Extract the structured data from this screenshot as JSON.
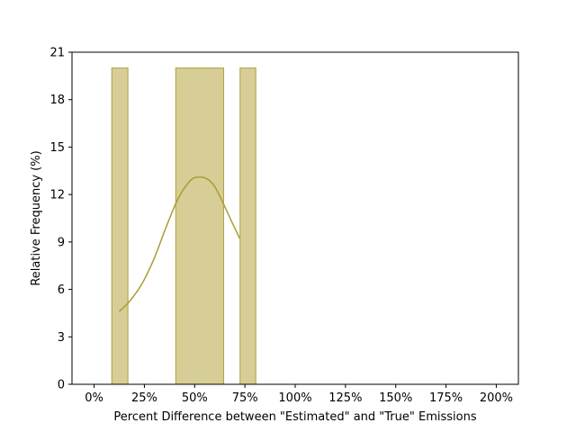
{
  "chart_data": {
    "type": "bar",
    "title": "",
    "xlabel": "Percent Difference between \"Estimated\" and \"True\" Emissions",
    "ylabel": "Relative Frequency (%)",
    "xlim": [
      -11,
      211
    ],
    "ylim": [
      0,
      21
    ],
    "x_ticks": [
      0,
      25,
      50,
      75,
      100,
      125,
      150,
      175,
      200
    ],
    "x_tick_labels": [
      "0%",
      "25%",
      "50%",
      "75%",
      "100%",
      "125%",
      "150%",
      "175%",
      "200%"
    ],
    "y_ticks": [
      0,
      3,
      6,
      9,
      12,
      15,
      18,
      21
    ],
    "y_tick_labels": [
      "0",
      "3",
      "6",
      "9",
      "12",
      "15",
      "18",
      "21"
    ],
    "grid": false,
    "colors": {
      "bar_fill": "#d6ce96",
      "bar_edge": "#b0a03a",
      "kde_line": "#aa9d35"
    },
    "series": [
      {
        "type": "histogram",
        "bins": [
          {
            "x0": 8.8,
            "x1": 16.8,
            "value": 20
          },
          {
            "x0": 40.6,
            "x1": 64.4,
            "value": 20
          },
          {
            "x0": 72.6,
            "x1": 80.4,
            "value": 20
          }
        ]
      },
      {
        "type": "line",
        "x": [
          12.5,
          18,
          24,
          30,
          36,
          42,
          48,
          52,
          56,
          60,
          64,
          68,
          72.5
        ],
        "y": [
          4.6,
          5.3,
          6.4,
          8.0,
          10.0,
          11.8,
          12.9,
          13.1,
          13.0,
          12.5,
          11.5,
          10.4,
          9.2
        ]
      }
    ]
  }
}
